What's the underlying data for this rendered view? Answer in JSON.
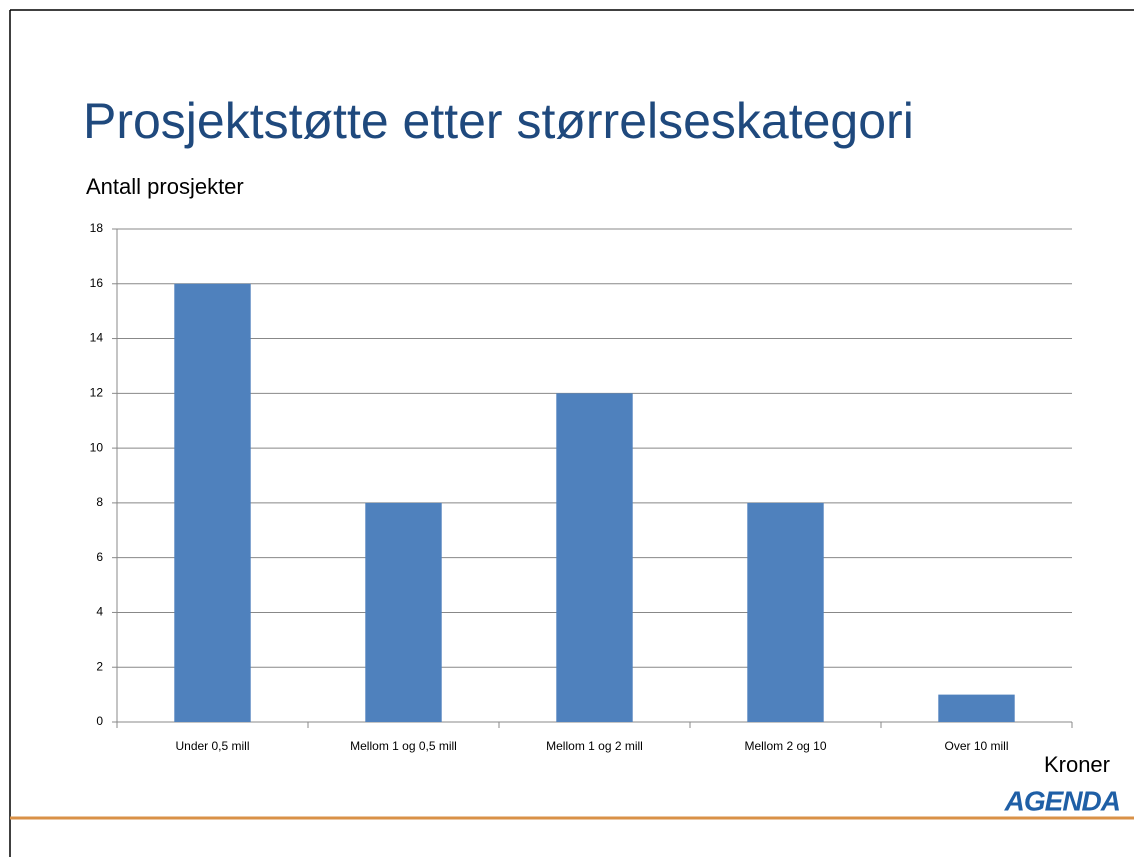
{
  "chart_data": {
    "type": "bar",
    "title": "Prosjektstøtte etter størrelseskategori",
    "ylabel": "Antall prosjekter",
    "xlabel": "Kroner",
    "categories": [
      "Under 0,5 mill",
      "Mellom 1 og 0,5 mill",
      "Mellom 1 og 2 mill",
      "Mellom 2 og 10",
      "Over 10 mill"
    ],
    "values": [
      16,
      8,
      12,
      8,
      1
    ],
    "color": "#4f81bd",
    "ylim": [
      0,
      18
    ],
    "yticks": [
      0,
      2,
      4,
      6,
      8,
      10,
      12,
      14,
      16,
      18
    ],
    "grid": true
  },
  "logo": "AGENDA"
}
